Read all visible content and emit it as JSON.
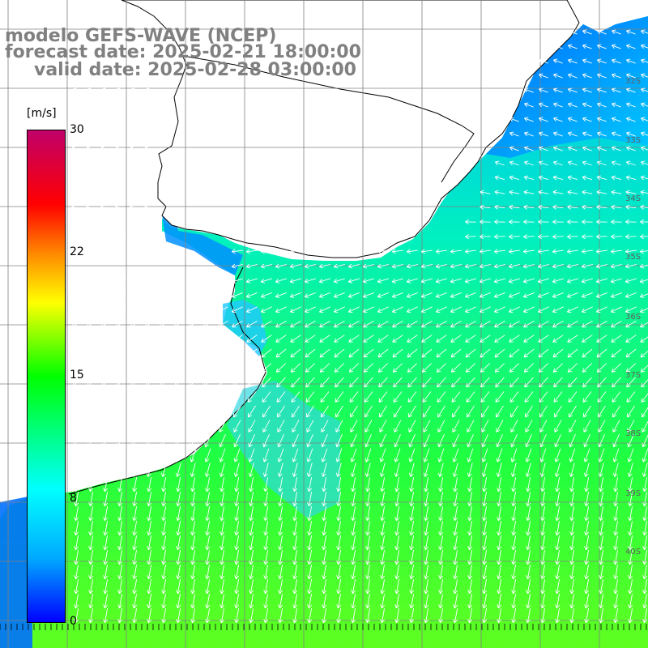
{
  "title": {
    "line1": "modelo GEFS-WAVE (NCEP)",
    "line2": "forecast date: 2025-02-21 18:00:00",
    "line3": "valid date: 2025-02-28 03:00:00"
  },
  "colorbar": {
    "unit": "[m/s]",
    "ticks": [
      "30",
      "22",
      "15",
      "8",
      "0"
    ]
  },
  "lat_labels": [
    "32S",
    "33S",
    "34S",
    "35S",
    "36S",
    "37S",
    "38S",
    "39S",
    "40S"
  ],
  "colors": {
    "ocean_low": "#0080ff",
    "ocean_mid": "#00e8a0",
    "ocean_high": "#33ff33",
    "land": "#ffffff",
    "grid": "#808080",
    "arrow": "#ffffff",
    "coast": "#000000"
  }
}
